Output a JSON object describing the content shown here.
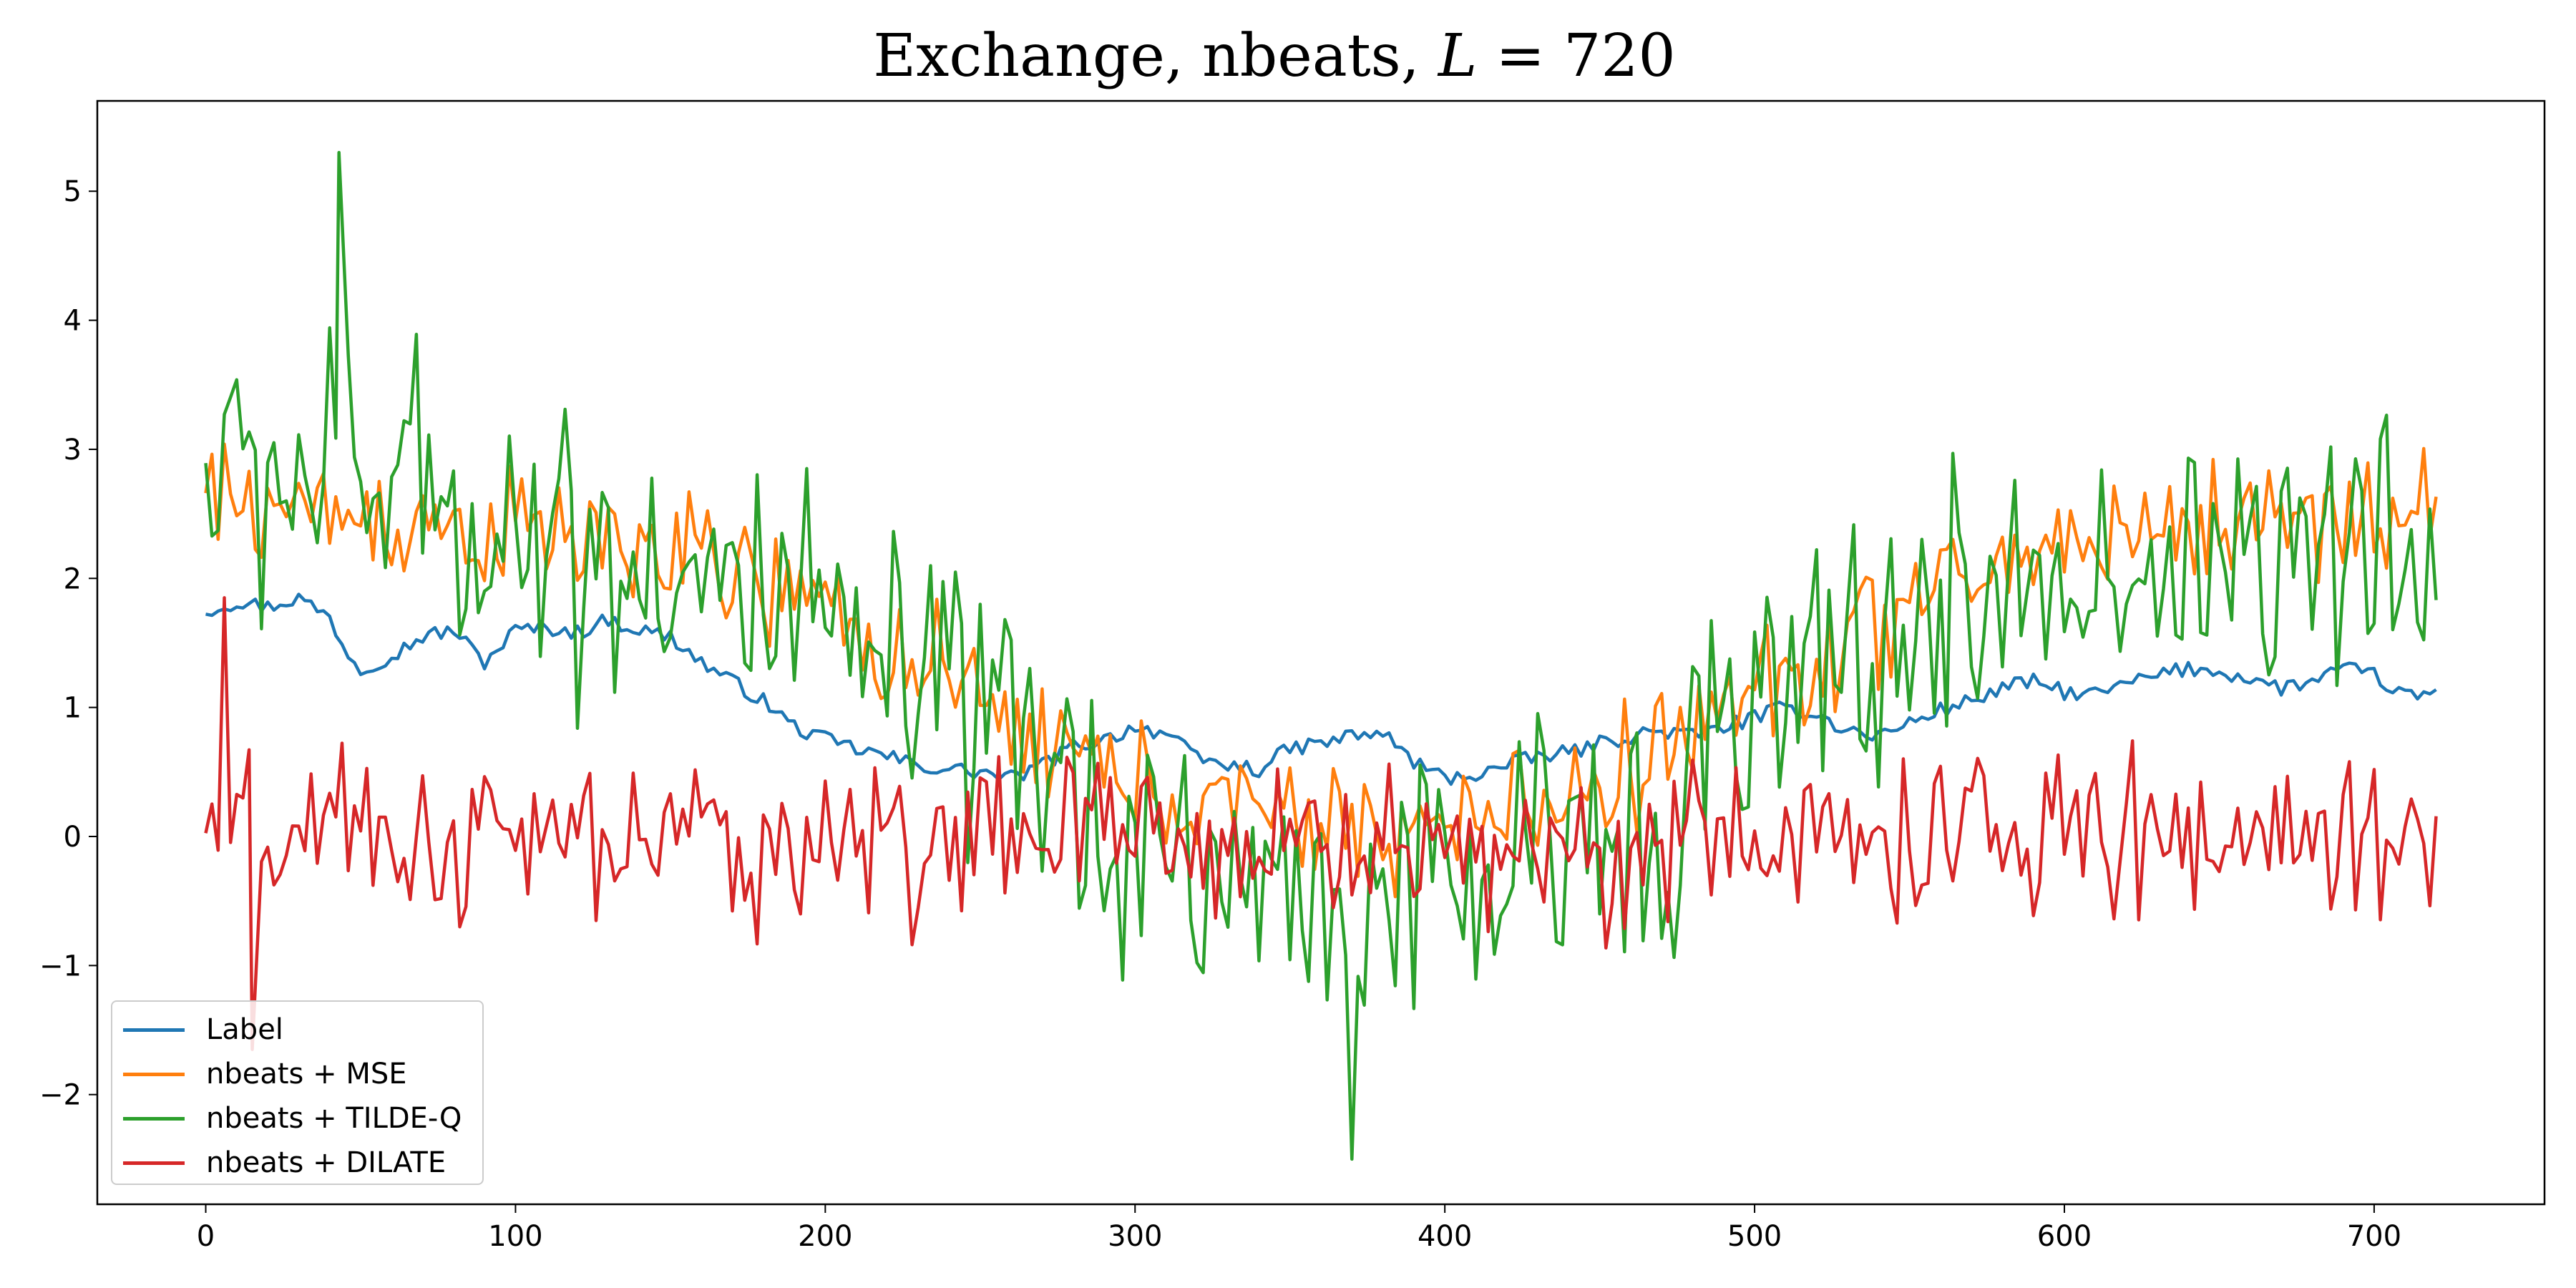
{
  "chart_data": {
    "type": "line",
    "title": "Exchange, nbeats, L = 720",
    "title_parts": {
      "prefix": "Exchange, nbeats, ",
      "var": "L",
      "suffix": " = 720"
    },
    "xlabel": "",
    "ylabel": "",
    "xlim": [
      -35,
      755
    ],
    "ylim": [
      -2.85,
      5.7
    ],
    "xticks": [
      0,
      100,
      200,
      300,
      400,
      500,
      600,
      700
    ],
    "yticks": [
      -2,
      -1,
      0,
      1,
      2,
      3,
      4,
      5
    ],
    "grid": false,
    "legend_position": "lower-left",
    "series": [
      {
        "name": "Label",
        "color": "#1f77b4",
        "x": [
          0,
          10,
          20,
          30,
          40,
          45,
          50,
          60,
          70,
          80,
          90,
          100,
          110,
          120,
          130,
          140,
          150,
          160,
          170,
          180,
          190,
          200,
          210,
          220,
          230,
          240,
          250,
          260,
          270,
          280,
          290,
          300,
          310,
          320,
          330,
          340,
          350,
          360,
          370,
          380,
          390,
          400,
          410,
          420,
          430,
          440,
          450,
          460,
          470,
          480,
          490,
          500,
          510,
          520,
          530,
          540,
          550,
          560,
          570,
          580,
          590,
          600,
          610,
          620,
          630,
          640,
          650,
          660,
          670,
          680,
          690,
          700,
          710,
          720
        ],
        "y": [
          1.75,
          1.82,
          1.78,
          1.85,
          1.7,
          1.45,
          1.3,
          1.4,
          1.55,
          1.6,
          1.35,
          1.6,
          1.62,
          1.58,
          1.68,
          1.6,
          1.55,
          1.35,
          1.2,
          1.05,
          0.85,
          0.75,
          0.68,
          0.62,
          0.55,
          0.52,
          0.5,
          0.45,
          0.55,
          0.7,
          0.75,
          0.85,
          0.8,
          0.6,
          0.55,
          0.52,
          0.68,
          0.72,
          0.78,
          0.8,
          0.58,
          0.45,
          0.48,
          0.55,
          0.62,
          0.65,
          0.72,
          0.78,
          0.82,
          0.78,
          0.85,
          0.92,
          1.0,
          0.95,
          0.82,
          0.78,
          0.88,
          0.98,
          1.05,
          1.15,
          1.2,
          1.12,
          1.1,
          1.18,
          1.25,
          1.3,
          1.28,
          1.22,
          1.15,
          1.2,
          1.3,
          1.25,
          1.08,
          1.12
        ]
      },
      {
        "name": "nbeats + MSE",
        "color": "#ff7f0e",
        "trend_x": [
          0,
          50,
          100,
          150,
          200,
          250,
          300,
          350,
          400,
          450,
          500,
          550,
          600,
          650,
          700,
          720
        ],
        "trend_y": [
          2.6,
          2.5,
          2.35,
          2.2,
          1.75,
          1.0,
          0.4,
          0.1,
          0.05,
          0.4,
          1.1,
          1.8,
          2.3,
          2.45,
          2.5,
          2.5
        ],
        "noise_amplitude": 0.45
      },
      {
        "name": "nbeats + TILDE-Q",
        "color": "#2ca02c",
        "trend_x": [
          0,
          50,
          100,
          150,
          200,
          250,
          300,
          350,
          400,
          450,
          500,
          550,
          600,
          650,
          700,
          720
        ],
        "trend_y": [
          2.8,
          2.8,
          2.4,
          2.1,
          1.5,
          0.8,
          0.0,
          -0.5,
          -0.5,
          0.0,
          0.9,
          1.6,
          2.0,
          2.2,
          2.1,
          2.1
        ],
        "noise_amplitude": 1.05,
        "max_point": {
          "x": 43,
          "y": 5.3
        },
        "min_point": {
          "x": 370,
          "y": -2.5
        }
      },
      {
        "name": "nbeats + DILATE",
        "color": "#d62728",
        "trend_x": [
          0,
          100,
          200,
          300,
          400,
          500,
          600,
          720
        ],
        "trend_y": [
          0.0,
          -0.05,
          -0.05,
          0.0,
          -0.1,
          -0.05,
          0.0,
          0.0
        ],
        "noise_amplitude": 0.6,
        "max_point": {
          "x": 6,
          "y": 1.85
        },
        "min_point": {
          "x": 15,
          "y": -1.65
        }
      }
    ]
  }
}
